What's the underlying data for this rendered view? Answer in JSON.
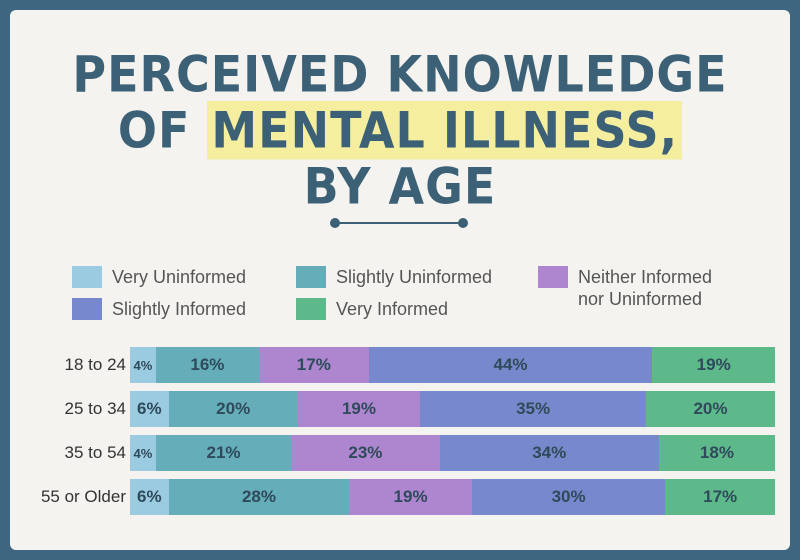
{
  "title": {
    "line1": "PERCEIVED KNOWLEDGE",
    "line2_pre": "OF ",
    "line2_highlight": "MENTAL ILLNESS,",
    "line3": "BY AGE"
  },
  "colors": {
    "background": "#3e6680",
    "card": "#f4f3ef",
    "title": "#3c6177",
    "highlight": "#f5ee9e"
  },
  "chart_data": {
    "type": "bar",
    "orientation": "horizontal",
    "stacked": true,
    "normalized": true,
    "categories": [
      "18 to 24",
      "25 to 34",
      "35 to 54",
      "55 or Older"
    ],
    "series": [
      {
        "name": "Very Uninformed",
        "color": "#9bcbe0",
        "values": [
          4,
          6,
          4,
          6
        ],
        "labels": [
          "4%",
          "6%",
          "4%",
          "6%"
        ]
      },
      {
        "name": "Slightly Uninformed",
        "color": "#64adb9",
        "values": [
          16,
          20,
          21,
          28
        ],
        "labels": [
          "16%",
          "20%",
          "21%",
          "28%"
        ]
      },
      {
        "name": "Neither Informed\nnor Uninformed",
        "color": "#ad86cf",
        "values": [
          17,
          19,
          23,
          19
        ],
        "labels": [
          "17%",
          "19%",
          "23%",
          "19%"
        ]
      },
      {
        "name": "Slightly Informed",
        "color": "#7888cc",
        "values": [
          44,
          35,
          34,
          30
        ],
        "labels": [
          "44%",
          "35%",
          "34%",
          "30%"
        ]
      },
      {
        "name": "Very Informed",
        "color": "#5db88a",
        "values": [
          19,
          20,
          18,
          17
        ],
        "labels": [
          "19%",
          "20%",
          "18%",
          "17%"
        ]
      }
    ],
    "legend_position": "top"
  }
}
